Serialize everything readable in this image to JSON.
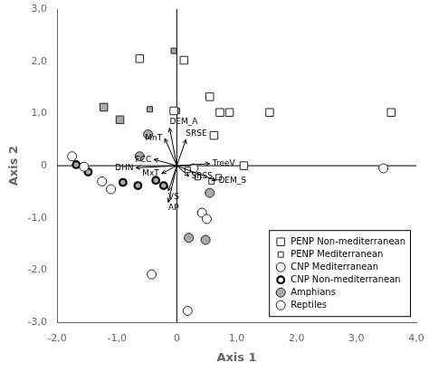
{
  "chart_data": {
    "type": "scatter",
    "xlabel": "Axis 1",
    "ylabel": "Axis 2",
    "xlim": [
      -2.0,
      4.0
    ],
    "ylim": [
      -3.0,
      3.0
    ],
    "xticks": [
      {
        "value": -2.0,
        "label": "-2,0"
      },
      {
        "value": -1.0,
        "label": "-1,0"
      },
      0,
      {
        "value": 1.0,
        "label": "1,0"
      },
      {
        "value": 2.0,
        "label": "2,0"
      },
      {
        "value": 3.0,
        "label": "3,0"
      },
      {
        "value": 4.0,
        "label": "4,0"
      }
    ],
    "yticks": [
      {
        "value": -3.0,
        "label": "-3,0"
      },
      {
        "value": -2.0,
        "label": "-2,0"
      },
      {
        "value": -1.0,
        "label": "-1,0"
      },
      0,
      {
        "value": 1.0,
        "label": "1,0"
      },
      {
        "value": 2.0,
        "label": "2,0"
      },
      {
        "value": 3.0,
        "label": "3,0"
      }
    ],
    "grid": false,
    "legend": "lower right",
    "series": [
      {
        "name": "PENP Non-mediterranean",
        "marker": "square",
        "color": "#ffffff",
        "x": [
          -0.62,
          0.12,
          0.55,
          0.88,
          0.72,
          1.55,
          3.58,
          1.12,
          -0.05,
          0.62,
          -1.22,
          -0.95
        ],
        "values": [
          2.05,
          2.02,
          1.32,
          1.02,
          1.02,
          1.02,
          1.02,
          0.0,
          1.05,
          0.58,
          1.12,
          0.88
        ],
        "colors": [
          "#ffffff",
          "#ffffff",
          "#ffffff",
          "#ffffff",
          "#ffffff",
          "#ffffff",
          "#ffffff",
          "#ffffff",
          "#ffffff",
          "#ffffff",
          "#aaaaaa",
          "#aaaaaa"
        ]
      },
      {
        "name": "PENP Mediterranean",
        "marker": "small-square",
        "color": "#ffffff",
        "x": [
          -0.05,
          -0.45,
          0.0,
          0.18,
          0.35,
          0.7,
          0.58
        ],
        "values": [
          2.2,
          1.08,
          1.05,
          -0.08,
          -0.22,
          -0.22,
          -0.3
        ],
        "colors": [
          "#aaaaaa",
          "#aaaaaa",
          "#aaaaaa",
          "#ffffff",
          "#ffffff",
          "#ffffff",
          "#ffffff"
        ]
      },
      {
        "name": "CNP Mediterranean",
        "marker": "circle",
        "color": "#ffffff",
        "x": [
          -1.75,
          -1.55,
          -1.25,
          -1.1,
          0.28,
          3.45,
          0.42,
          0.5,
          -0.42,
          0.18,
          -0.48,
          -0.62,
          0.55,
          0.2,
          0.48
        ],
        "values": [
          0.18,
          -0.02,
          -0.3,
          -0.45,
          -0.05,
          -0.05,
          -0.9,
          -1.02,
          -2.08,
          -2.78,
          0.6,
          0.18,
          -0.52,
          -1.38,
          -1.42
        ],
        "colors": [
          "#ffffff",
          "#ffffff",
          "#ffffff",
          "#ffffff",
          "#ffffff",
          "#ffffff",
          "#ffffff",
          "#ffffff",
          "#ffffff",
          "#ffffff",
          "#aaaaaa",
          "#aaaaaa",
          "#aaaaaa",
          "#aaaaaa",
          "#aaaaaa"
        ]
      },
      {
        "name": "CNP Non-mediterranean",
        "marker": "thick-circle",
        "color": "#ffffff",
        "x": [
          -1.68,
          -1.48,
          -0.9,
          -0.65,
          -0.22,
          -0.35
        ],
        "values": [
          0.02,
          -0.12,
          -0.32,
          -0.38,
          -0.38,
          -0.28
        ],
        "colors": [
          "#aaaaaa",
          "#aaaaaa",
          "#aaaaaa",
          "#aaaaaa",
          "#aaaaaa",
          "#aaaaaa"
        ]
      },
      {
        "name": "Amphians",
        "marker": "circle",
        "color": "#aaaaaa",
        "x": [],
        "values": []
      },
      {
        "name": "Reptiles",
        "marker": "circle",
        "color": "#ffffff",
        "x": [],
        "values": []
      }
    ],
    "arrows": [
      {
        "label": "DEM_A",
        "x": -0.12,
        "y": 0.72
      },
      {
        "label": "MnT",
        "x": -0.2,
        "y": 0.52
      },
      {
        "label": "SRSE",
        "x": 0.15,
        "y": 0.5
      },
      {
        "label": "FCC",
        "x": -0.38,
        "y": 0.12
      },
      {
        "label": "TreeV",
        "x": 0.55,
        "y": 0.04
      },
      {
        "label": "DHN",
        "x": -0.68,
        "y": -0.04
      },
      {
        "label": "MxT",
        "x": -0.25,
        "y": -0.15
      },
      {
        "label": "SRSS",
        "x": 0.2,
        "y": -0.2
      },
      {
        "label": "VS",
        "x": -0.14,
        "y": -0.48
      },
      {
        "label": "AP",
        "x": -0.14,
        "y": -0.7
      },
      {
        "label": "DEM_S",
        "x": 0.65,
        "y": -0.28
      }
    ]
  }
}
